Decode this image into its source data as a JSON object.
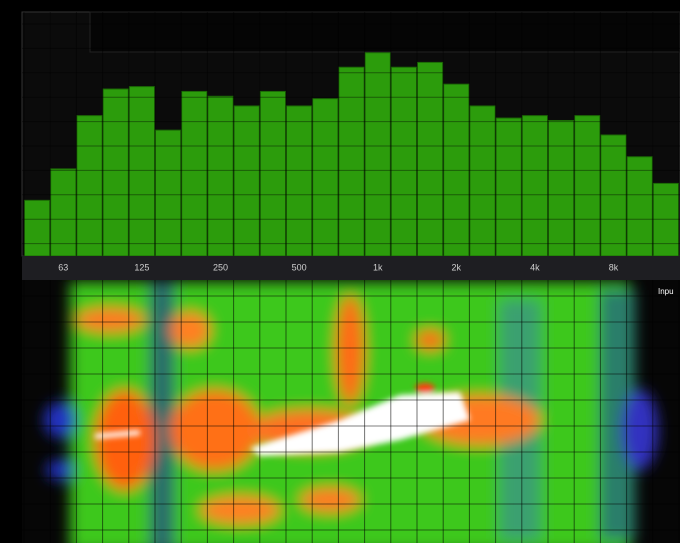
{
  "chart_data": {
    "type": "bar",
    "categories": [
      null,
      "63",
      null,
      null,
      "125",
      null,
      null,
      "250",
      null,
      null,
      "500",
      null,
      null,
      "1k",
      null,
      null,
      "2k",
      null,
      null,
      "4k",
      null,
      null,
      "8k",
      null,
      null
    ],
    "values": [
      23,
      36,
      58,
      69,
      70,
      52,
      68,
      66,
      62,
      68,
      62,
      65,
      78,
      84,
      78,
      80,
      71,
      62,
      57,
      58,
      56,
      58,
      50,
      41,
      30
    ],
    "color": "#2c9c0c",
    "ylim": [
      0,
      100
    ],
    "side_label": "Inpu"
  }
}
